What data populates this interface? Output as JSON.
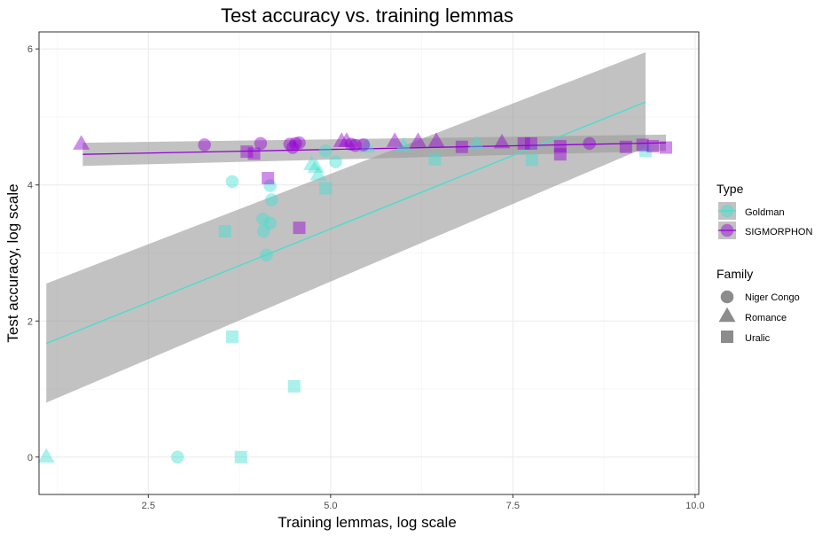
{
  "chart_data": {
    "type": "scatter",
    "title": "Test accuracy vs. training lemmas",
    "xlabel": "Training lemmas, log scale",
    "ylabel": "Test accuracy, log scale",
    "xlim": [
      1.0,
      10.05
    ],
    "ylim": [
      -0.55,
      6.25
    ],
    "x_ticks": [
      2.5,
      5.0,
      7.5,
      10.0
    ],
    "x_tick_labels": [
      "2.5",
      "5.0",
      "7.5",
      "10.0"
    ],
    "y_ticks": [
      0,
      2,
      4,
      6
    ],
    "y_tick_labels": [
      "0",
      "2",
      "4",
      "6"
    ],
    "grid": true,
    "colors": {
      "Goldman": "#40E0D0",
      "SIGMORPHON": "#9400D3",
      "band": "#999999"
    },
    "legend": {
      "type": {
        "title": "Type",
        "entries": [
          "Goldman",
          "SIGMORPHON"
        ]
      },
      "family": {
        "title": "Family",
        "entries": [
          "Niger Congo",
          "Romance",
          "Uralic"
        ]
      }
    },
    "trend_lines": [
      {
        "type": "Goldman",
        "x": [
          1.1,
          9.32
        ],
        "y": [
          1.67,
          5.22
        ],
        "ci_low": [
          0.8,
          4.55
        ],
        "ci_high": [
          2.55,
          5.95
        ]
      },
      {
        "type": "SIGMORPHON",
        "x": [
          1.6,
          9.6
        ],
        "y": [
          4.45,
          4.62
        ],
        "ci_low": [
          4.28,
          4.5
        ],
        "ci_high": [
          4.62,
          4.74
        ]
      }
    ],
    "points": [
      {
        "x": 1.1,
        "y": 0.0,
        "type": "Goldman",
        "family": "Romance"
      },
      {
        "x": 2.9,
        "y": 0.0,
        "type": "Goldman",
        "family": "Niger Congo"
      },
      {
        "x": 3.77,
        "y": 0.0,
        "type": "Goldman",
        "family": "Uralic"
      },
      {
        "x": 3.65,
        "y": 1.77,
        "type": "Goldman",
        "family": "Uralic"
      },
      {
        "x": 4.5,
        "y": 1.04,
        "type": "Goldman",
        "family": "Uralic"
      },
      {
        "x": 3.55,
        "y": 3.32,
        "type": "Goldman",
        "family": "Uralic"
      },
      {
        "x": 3.65,
        "y": 4.05,
        "type": "Goldman",
        "family": "Niger Congo"
      },
      {
        "x": 4.07,
        "y": 3.5,
        "type": "Goldman",
        "family": "Niger Congo"
      },
      {
        "x": 4.17,
        "y": 3.44,
        "type": "Goldman",
        "family": "Niger Congo"
      },
      {
        "x": 4.08,
        "y": 3.32,
        "type": "Goldman",
        "family": "Niger Congo"
      },
      {
        "x": 4.12,
        "y": 2.97,
        "type": "Goldman",
        "family": "Niger Congo"
      },
      {
        "x": 4.17,
        "y": 3.99,
        "type": "Goldman",
        "family": "Niger Congo"
      },
      {
        "x": 4.19,
        "y": 3.78,
        "type": "Goldman",
        "family": "Niger Congo"
      },
      {
        "x": 4.74,
        "y": 4.3,
        "type": "Goldman",
        "family": "Romance"
      },
      {
        "x": 4.8,
        "y": 4.26,
        "type": "Goldman",
        "family": "Romance"
      },
      {
        "x": 4.83,
        "y": 4.15,
        "type": "Goldman",
        "family": "Romance"
      },
      {
        "x": 4.93,
        "y": 3.95,
        "type": "Goldman",
        "family": "Uralic"
      },
      {
        "x": 4.93,
        "y": 4.5,
        "type": "Goldman",
        "family": "Niger Congo"
      },
      {
        "x": 5.07,
        "y": 4.34,
        "type": "Goldman",
        "family": "Niger Congo"
      },
      {
        "x": 5.5,
        "y": 4.56,
        "type": "Goldman",
        "family": "Romance"
      },
      {
        "x": 6.0,
        "y": 4.57,
        "type": "Goldman",
        "family": "Romance"
      },
      {
        "x": 6.43,
        "y": 4.38,
        "type": "Goldman",
        "family": "Uralic"
      },
      {
        "x": 7.0,
        "y": 4.6,
        "type": "Goldman",
        "family": "Romance"
      },
      {
        "x": 7.76,
        "y": 4.37,
        "type": "Goldman",
        "family": "Uralic"
      },
      {
        "x": 9.32,
        "y": 4.5,
        "type": "Goldman",
        "family": "Uralic"
      },
      {
        "x": 1.58,
        "y": 4.6,
        "type": "SIGMORPHON",
        "family": "Romance"
      },
      {
        "x": 3.27,
        "y": 4.59,
        "type": "SIGMORPHON",
        "family": "Niger Congo"
      },
      {
        "x": 3.85,
        "y": 4.49,
        "type": "SIGMORPHON",
        "family": "Uralic"
      },
      {
        "x": 3.95,
        "y": 4.46,
        "type": "SIGMORPHON",
        "family": "Uralic"
      },
      {
        "x": 4.04,
        "y": 4.61,
        "type": "SIGMORPHON",
        "family": "Niger Congo"
      },
      {
        "x": 4.14,
        "y": 4.1,
        "type": "SIGMORPHON",
        "family": "Uralic"
      },
      {
        "x": 4.44,
        "y": 4.6,
        "type": "SIGMORPHON",
        "family": "Niger Congo"
      },
      {
        "x": 4.48,
        "y": 4.55,
        "type": "SIGMORPHON",
        "family": "Niger Congo"
      },
      {
        "x": 4.52,
        "y": 4.61,
        "type": "SIGMORPHON",
        "family": "Niger Congo"
      },
      {
        "x": 4.57,
        "y": 4.62,
        "type": "SIGMORPHON",
        "family": "Niger Congo"
      },
      {
        "x": 4.57,
        "y": 3.37,
        "type": "SIGMORPHON",
        "family": "Uralic"
      },
      {
        "x": 5.15,
        "y": 4.64,
        "type": "SIGMORPHON",
        "family": "Romance"
      },
      {
        "x": 5.22,
        "y": 4.64,
        "type": "SIGMORPHON",
        "family": "Romance"
      },
      {
        "x": 5.28,
        "y": 4.6,
        "type": "SIGMORPHON",
        "family": "Niger Congo"
      },
      {
        "x": 5.34,
        "y": 4.58,
        "type": "SIGMORPHON",
        "family": "Niger Congo"
      },
      {
        "x": 5.45,
        "y": 4.59,
        "type": "SIGMORPHON",
        "family": "Niger Congo"
      },
      {
        "x": 5.88,
        "y": 4.64,
        "type": "SIGMORPHON",
        "family": "Romance"
      },
      {
        "x": 6.2,
        "y": 4.64,
        "type": "SIGMORPHON",
        "family": "Romance"
      },
      {
        "x": 6.45,
        "y": 4.64,
        "type": "SIGMORPHON",
        "family": "Romance"
      },
      {
        "x": 6.8,
        "y": 4.56,
        "type": "SIGMORPHON",
        "family": "Uralic"
      },
      {
        "x": 7.35,
        "y": 4.62,
        "type": "SIGMORPHON",
        "family": "Romance"
      },
      {
        "x": 7.65,
        "y": 4.61,
        "type": "SIGMORPHON",
        "family": "Uralic"
      },
      {
        "x": 7.75,
        "y": 4.61,
        "type": "SIGMORPHON",
        "family": "Uralic"
      },
      {
        "x": 8.15,
        "y": 4.45,
        "type": "SIGMORPHON",
        "family": "Uralic"
      },
      {
        "x": 8.15,
        "y": 4.57,
        "type": "SIGMORPHON",
        "family": "Uralic"
      },
      {
        "x": 8.55,
        "y": 4.61,
        "type": "SIGMORPHON",
        "family": "Niger Congo"
      },
      {
        "x": 9.05,
        "y": 4.56,
        "type": "SIGMORPHON",
        "family": "Uralic"
      },
      {
        "x": 9.28,
        "y": 4.59,
        "type": "SIGMORPHON",
        "family": "Uralic"
      },
      {
        "x": 9.42,
        "y": 4.57,
        "type": "SIGMORPHON",
        "family": "Uralic"
      },
      {
        "x": 9.6,
        "y": 4.55,
        "type": "SIGMORPHON",
        "family": "Uralic"
      }
    ]
  }
}
